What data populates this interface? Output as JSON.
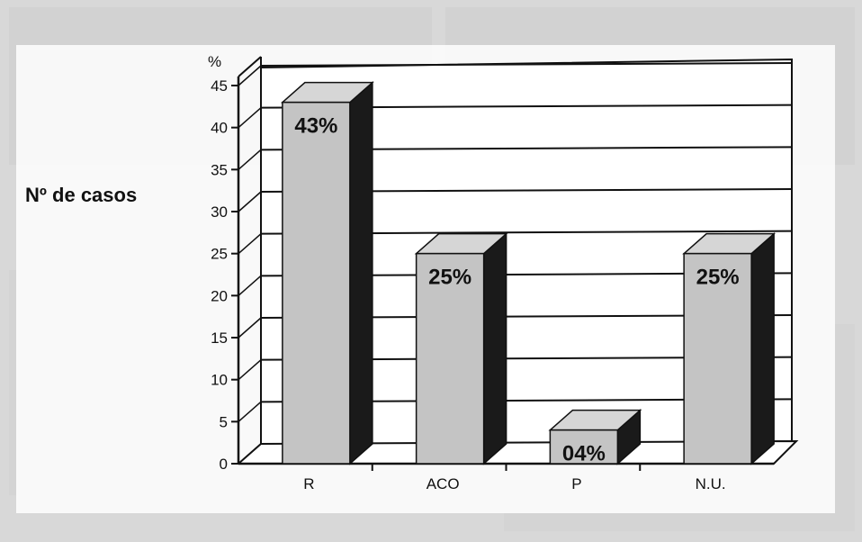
{
  "chart_data": {
    "type": "bar",
    "ylabel": "Nº de casos",
    "yunit": "%",
    "ylim": [
      0,
      45
    ],
    "yticks": [
      0,
      5,
      10,
      15,
      20,
      25,
      30,
      35,
      40,
      45
    ],
    "grid": true,
    "style": "3d",
    "categories": [
      "R",
      "ACO",
      "P",
      "N.U."
    ],
    "values": [
      43,
      25,
      4,
      25
    ],
    "data_labels": [
      "43%",
      "25%",
      "04%",
      "25%"
    ],
    "colors": {
      "bar_front": "#c4c4c4",
      "bar_top": "#d6d6d6",
      "bar_side": "#1a1a1a",
      "grid": "#111111",
      "background": "#ffffff"
    }
  }
}
